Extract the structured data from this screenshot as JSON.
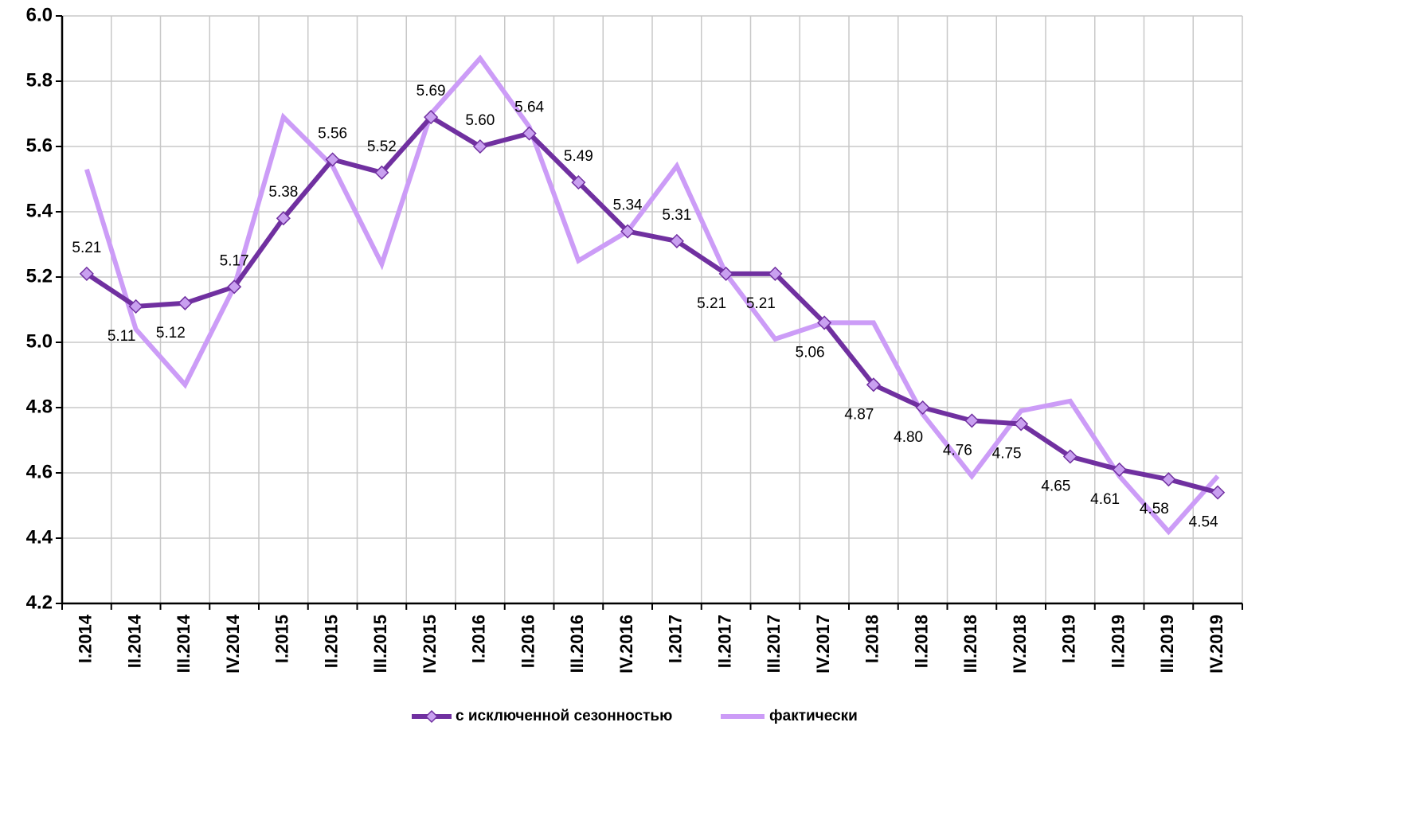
{
  "chart_data": {
    "type": "line",
    "categories": [
      "I.2014",
      "II.2014",
      "III.2014",
      "IV.2014",
      "I.2015",
      "II.2015",
      "III.2015",
      "IV.2015",
      "I.2016",
      "II.2016",
      "III.2016",
      "IV.2016",
      "I.2017",
      "II.2017",
      "III.2017",
      "IV.2017",
      "I.2018",
      "II.2018",
      "III.2018",
      "IV.2018",
      "I.2019",
      "II.2019",
      "III.2019",
      "IV.2019"
    ],
    "series": [
      {
        "name": "с исключенной сезонностью",
        "color": "#7030a0",
        "marker_color": "#c9a0f0",
        "values": [
          5.21,
          5.11,
          5.12,
          5.17,
          5.38,
          5.56,
          5.52,
          5.69,
          5.6,
          5.64,
          5.49,
          5.34,
          5.31,
          5.21,
          5.21,
          5.06,
          4.87,
          4.8,
          4.76,
          4.75,
          4.65,
          4.61,
          4.58,
          4.54
        ],
        "value_labels": [
          "5.21",
          "5.11",
          "5.12",
          "5.17",
          "5.38",
          "5.56",
          "5.52",
          "5.69",
          "5.60",
          "5.64",
          "5.49",
          "5.34",
          "5.31",
          "5.21",
          "5.21",
          "5.06",
          "4.87",
          "4.80",
          "4.76",
          "4.75",
          "4.65",
          "4.61",
          "4.58",
          "4.54"
        ]
      },
      {
        "name": "фактически",
        "color": "#cc9cf7",
        "values": [
          5.53,
          5.04,
          4.87,
          5.17,
          5.69,
          5.54,
          5.24,
          5.7,
          5.87,
          5.66,
          5.25,
          5.34,
          5.54,
          5.21,
          5.01,
          5.06,
          5.06,
          4.78,
          4.59,
          4.79,
          4.82,
          4.59,
          4.42,
          4.59
        ]
      }
    ],
    "ylim": [
      4.2,
      6.0
    ],
    "yticks": [
      {
        "value": 4.2,
        "label": "4.2"
      },
      {
        "value": 4.4,
        "label": "4.4"
      },
      {
        "value": 4.6,
        "label": "4.6"
      },
      {
        "value": 4.8,
        "label": "4.8"
      },
      {
        "value": 5.0,
        "label": "5.0"
      },
      {
        "value": 5.2,
        "label": "5.2"
      },
      {
        "value": 5.4,
        "label": "5.4"
      },
      {
        "value": 5.6,
        "label": "5.6"
      },
      {
        "value": 5.8,
        "label": "5.8"
      },
      {
        "value": 6.0,
        "label": "6.0"
      }
    ],
    "grid": true,
    "legend": "bottom"
  }
}
